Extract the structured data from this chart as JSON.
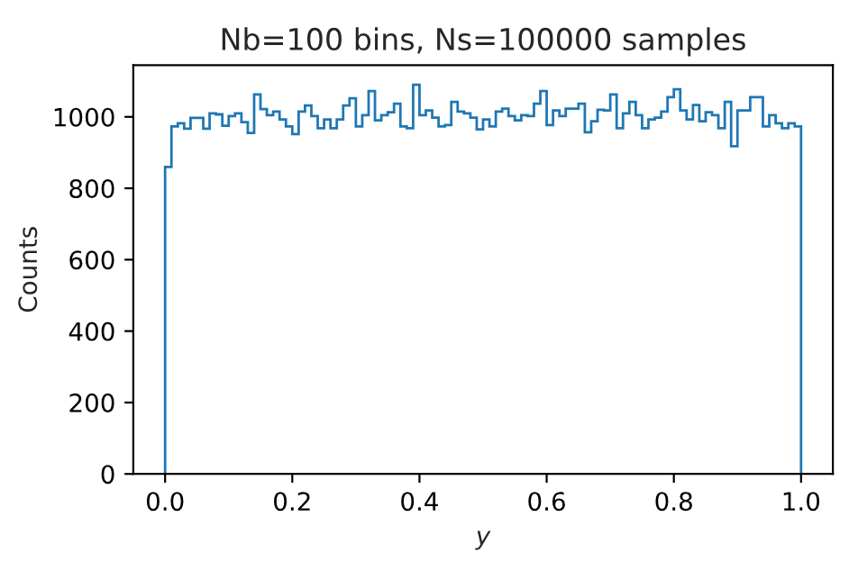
{
  "chart_data": {
    "type": "histogram",
    "title": "Nb=100 bins, Ns=100000 samples",
    "xlabel": "y",
    "ylabel": "Counts",
    "color": "#1f77b4",
    "bins": [
      0.0,
      0.01,
      0.02,
      0.03,
      0.04,
      0.05,
      0.06,
      0.07,
      0.08,
      0.09,
      0.1,
      0.11,
      0.12,
      0.13,
      0.14,
      0.15,
      0.16,
      0.17,
      0.18,
      0.19,
      0.2,
      0.21,
      0.22,
      0.23,
      0.24,
      0.25,
      0.26,
      0.27,
      0.28,
      0.29,
      0.3,
      0.31,
      0.32,
      0.33,
      0.34,
      0.35,
      0.36,
      0.37,
      0.38,
      0.39,
      0.4,
      0.41,
      0.42,
      0.43,
      0.44,
      0.45,
      0.46,
      0.47,
      0.48,
      0.49,
      0.5,
      0.51,
      0.52,
      0.53,
      0.54,
      0.55,
      0.56,
      0.57,
      0.58,
      0.59,
      0.6,
      0.61,
      0.62,
      0.63,
      0.64,
      0.65,
      0.66,
      0.67,
      0.68,
      0.69,
      0.7,
      0.71,
      0.72,
      0.73,
      0.74,
      0.75,
      0.76,
      0.77,
      0.78,
      0.79,
      0.8,
      0.81,
      0.82,
      0.83,
      0.84,
      0.85,
      0.86,
      0.87,
      0.88,
      0.89,
      0.9,
      0.91,
      0.92,
      0.93,
      0.94,
      0.95,
      0.96,
      0.97,
      0.98,
      0.99,
      1.0
    ],
    "values": [
      860,
      973,
      982,
      967,
      997,
      997,
      967,
      1010,
      1007,
      975,
      1002,
      1010,
      985,
      955,
      1063,
      1022,
      1005,
      1015,
      993,
      973,
      952,
      1015,
      1032,
      1002,
      968,
      993,
      968,
      993,
      1032,
      1052,
      973,
      1005,
      1072,
      990,
      1005,
      1013,
      1037,
      973,
      968,
      1090,
      1005,
      1018,
      998,
      973,
      977,
      1042,
      1015,
      1010,
      998,
      965,
      993,
      973,
      1015,
      1023,
      1002,
      990,
      1005,
      1002,
      1037,
      1072,
      977,
      1018,
      1002,
      1023,
      1023,
      1037,
      957,
      988,
      1020,
      1018,
      1063,
      968,
      1010,
      1042,
      1005,
      968,
      993,
      998,
      1015,
      1055,
      1077,
      1018,
      993,
      1033,
      988,
      1013,
      1005,
      968,
      1042,
      918,
      1018,
      1018,
      1055,
      1055,
      973,
      1005,
      982,
      968,
      982,
      973
    ],
    "xlim": [
      -0.05,
      1.05
    ],
    "xticks": [
      {
        "value": 0.0,
        "label": "0.0"
      },
      {
        "value": 0.2,
        "label": "0.2"
      },
      {
        "value": 0.4,
        "label": "0.4"
      },
      {
        "value": 0.6,
        "label": "0.6"
      },
      {
        "value": 0.8,
        "label": "0.8"
      },
      {
        "value": 1.0,
        "label": "1.0"
      }
    ],
    "ylim": [
      0,
      1145
    ],
    "yticks": [
      0,
      200,
      400,
      600,
      800,
      1000
    ],
    "grid": false
  }
}
